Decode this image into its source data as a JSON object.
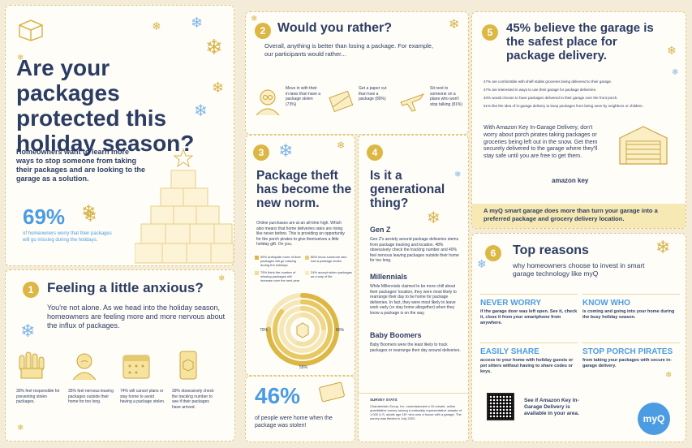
{
  "panel_a": {
    "title": "Are your packages protected this holiday season?",
    "intro": "Homeowners want to learn more ways to stop someone from taking their packages and are looking to the garage as a solution.",
    "stat": "69%",
    "stat_caption": "of homeowners worry that their packages will go missing during the holidays."
  },
  "panel_1": {
    "number": "1",
    "heading": "Feeling a little anxious?",
    "body": "You're not alone. As we head into the holiday season, homeowners are feeling more and more nervous about the influx of packages.",
    "stats": [
      {
        "icon": "raised-hands-icon",
        "text": "30% feel responsible for preventing stolen packages."
      },
      {
        "icon": "worried-person-icon",
        "text": "35% feel nervous leaving packages outside their home for too long."
      },
      {
        "icon": "calendar-icon",
        "text": "74% will cancel plans or stay home to avoid having a package stolen."
      },
      {
        "icon": "phone-tracking-icon",
        "text": "39% obsessively check the tracking number to see if their packages have arrived."
      }
    ]
  },
  "panel_2": {
    "number": "2",
    "heading": "Would you rather?",
    "body": "Overall, anything is better than losing a package. For example, our participants would rather...",
    "options": [
      {
        "icon": "in-laws-icon",
        "text": "Move in with their in-laws than have a package stolen (73%)"
      },
      {
        "icon": "paper-cut-icon",
        "text": "Get a paper cut than lose a package (80%)"
      },
      {
        "icon": "airplane-icon",
        "text": "Sit next to someone on a plane who won't stop talking (81%)"
      }
    ]
  },
  "panel_3": {
    "number": "3",
    "heading": "Package theft has become the new norm.",
    "body": "Online purchases are at an all-time high. Which also means that home deliveries rates are rising like never before. This is providing an opportunity for the porch pirates to give themselves a little holiday gift. On you.",
    "legend": [
      "55% anticipate more of their packages will go missing during the holidays",
      "86% know someone who had a package stolen",
      "75% think the number of missing packages will increase over the next year",
      "24% accept stolen packages as a way of life"
    ],
    "chart_labels": [
      "75%",
      "86%",
      "24%",
      "55%"
    ]
  },
  "panel_46": {
    "stat": "46%",
    "caption": "of people were home when the package was stolen!"
  },
  "panel_4": {
    "number": "4",
    "heading": "Is it a generational thing?",
    "genz_title": "Gen Z",
    "genz_body": "Gen Z's anxiety around package deliveries stems from package tracking and location. 48% obsessively check the tracking number and 40% feel nervous leaving packages outside their home for too long.",
    "mill_title": "Millennials",
    "mill_body": "While Millennials claimed to be more chill about their packages' location, they were most likely to rearrange their day to be home for package deliveries. In fact, they were most likely to leave work early (or stay home altogether) when they know a package is on the way.",
    "boomer_title": "Baby Boomers",
    "boomer_body": "Baby Boomers were the least likely to track packages or rearrange their day around deliveries.",
    "survey_title": "SURVEY STATS",
    "survey_body": "Chamberlain Group, Inc. commissioned a 10-minute, online quantitative survey among a nationally representative sample of 1,000 U.S. adults age 18+ who own a house with a garage. The survey was fielded in July 2022."
  },
  "panel_5": {
    "number": "5",
    "heading": "45% believe the garage is the safest place for package delivery.",
    "facts": [
      "47% are comfortable with shelf-stable groceries being delivered to their garage.",
      "47% are interested in ways to use their garage for package deliveries.",
      "40% would choose to have packages delivered to their garage over the front porch.",
      "51% like the idea of in-garage delivery to keep packages from being seen by neighbors or children."
    ],
    "amazon_text": "With Amazon Key In-Garage Delivery, don't worry about porch pirates taking packages or groceries being left out in the snow. Get them securely delivered to the garage where they'll stay safe until you are free to get them.",
    "amazon_logo": "amazon key",
    "band_text": "A myQ smart garage does more than turn your garage into a preferred package and grocery delivery location."
  },
  "panel_6": {
    "number": "6",
    "heading": "Top reasons",
    "subheading": "why homeowners choose to invest in smart garage technology like myQ",
    "reasons": [
      {
        "title": "NEVER WORRY",
        "text": "if the garage door was left open. See it, check it, close it from your smartphone from anywhere."
      },
      {
        "title": "KNOW WHO",
        "text": "is coming and going into your home during the busy holiday season."
      },
      {
        "title": "EASILY SHARE",
        "text": "access to your home with holiday guests or pet sitters without having to share codes or keys."
      },
      {
        "title": "STOP PORCH PIRATES",
        "text": "from taking your packages with secure in-garage delivery."
      }
    ],
    "qr_text": "See if Amazon Key In-Garage Delivery is available in your area.",
    "logo": "myQ"
  },
  "colors": {
    "navy": "#2c3d63",
    "blue": "#4b9ce2",
    "gold": "#dcb744",
    "background": "#f4ecd8"
  }
}
